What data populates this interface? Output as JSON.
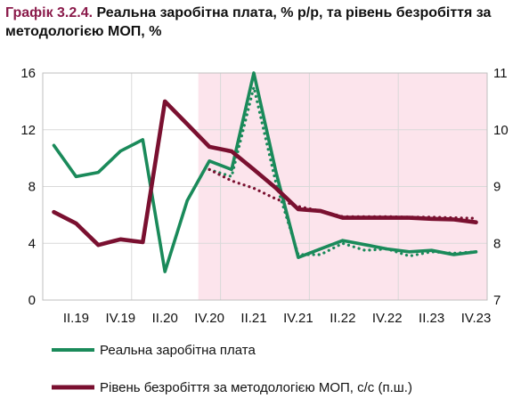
{
  "title": {
    "label": "Графік 3.2.4.",
    "text": "Реальна заробітна плата, % р/р, та рівень безробіття за методологією МОП, %"
  },
  "colors": {
    "wage": "#1a8a5a",
    "unemployment": "#7a1030",
    "forecast_band": "#fce4ec",
    "grid": "#d9d9d9"
  },
  "chart_data": {
    "type": "line",
    "x": [
      "I.19",
      "II.19",
      "III.19",
      "IV.19",
      "I.20",
      "II.20",
      "III.20",
      "IV.20",
      "I.21",
      "II.21",
      "III.21",
      "IV.21",
      "I.22",
      "II.22",
      "III.22",
      "IV.22",
      "I.23",
      "II.23",
      "III.23",
      "IV.23"
    ],
    "x_tick_labels": [
      "II.19",
      "IV.19",
      "II.20",
      "IV.20",
      "II.21",
      "IV.21",
      "II.22",
      "IV.22",
      "II.23",
      "IV.23"
    ],
    "yleft": {
      "min": 0,
      "max": 16,
      "ticks": [
        0,
        4,
        8,
        12,
        16
      ]
    },
    "yright": {
      "min": 7,
      "max": 11,
      "ticks": [
        7,
        8,
        9,
        10,
        11
      ]
    },
    "forecast_start": "IV.20",
    "series": [
      {
        "name": "Реальна заробітна плата",
        "axis": "left",
        "style": "solid",
        "values": [
          10.9,
          8.7,
          9.0,
          10.5,
          11.3,
          2.0,
          7.0,
          9.8,
          9.2,
          16.0,
          9.0,
          3.0,
          3.6,
          4.2,
          3.9,
          3.6,
          3.4,
          3.5,
          3.2,
          3.4
        ]
      },
      {
        "axis": "left",
        "style": "dotted",
        "values": [
          null,
          null,
          null,
          null,
          null,
          null,
          null,
          9.2,
          8.7,
          15.0,
          8.2,
          3.2,
          3.2,
          4.0,
          3.5,
          3.6,
          3.1,
          3.4,
          3.3,
          3.4
        ]
      },
      {
        "name": "Рівень безробіття за методологією МОП, с/с (п.ш.)",
        "axis": "right",
        "style": "solid",
        "values": [
          8.55,
          8.35,
          7.97,
          8.07,
          8.02,
          10.5,
          10.1,
          9.7,
          9.62,
          9.3,
          8.97,
          8.6,
          8.57,
          8.45,
          8.45,
          8.45,
          8.45,
          8.43,
          8.42,
          8.37
        ]
      },
      {
        "axis": "right",
        "style": "dotted",
        "values": [
          null,
          null,
          null,
          null,
          null,
          null,
          null,
          9.3,
          9.1,
          8.97,
          8.78,
          8.65,
          8.57,
          8.47,
          8.47,
          8.47,
          8.46,
          8.46,
          8.45,
          8.44
        ]
      }
    ],
    "legend": [
      {
        "label": "Реальна заробітна плата",
        "color": "#1a8a5a"
      },
      {
        "label": "Рівень безробіття за методологією МОП, с/с (п.ш.)",
        "color": "#7a1030"
      }
    ]
  }
}
